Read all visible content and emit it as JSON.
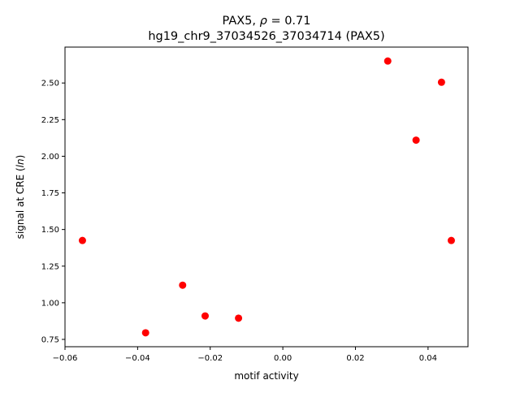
{
  "chart_data": {
    "type": "scatter",
    "title_line1_prefix": "PAX5, ",
    "title_rho_symbol": "ρ",
    "title_rho_value": " = 0.71",
    "title_line2": "hg19_chr9_37034526_37034714 (PAX5)",
    "xlabel": "motif activity",
    "ylabel_prefix": "signal at CRE (",
    "ylabel_italic": "ln",
    "ylabel_suffix": ")",
    "xlim": [
      -0.06,
      0.051
    ],
    "ylim": [
      0.7,
      2.745
    ],
    "xticks": [
      -0.06,
      -0.04,
      -0.02,
      0.0,
      0.02,
      0.04
    ],
    "xtick_labels": [
      "−0.06",
      "−0.04",
      "−0.02",
      "0.00",
      "0.02",
      "0.04"
    ],
    "yticks": [
      0.75,
      1.0,
      1.25,
      1.5,
      1.75,
      2.0,
      2.25,
      2.5
    ],
    "ytick_labels": [
      "0.75",
      "1.00",
      "1.25",
      "1.50",
      "1.75",
      "2.00",
      "2.25",
      "2.50"
    ],
    "grid": false,
    "marker_color": "#ff0000",
    "points": [
      {
        "x": -0.0552,
        "y": 1.425
      },
      {
        "x": -0.0378,
        "y": 0.795
      },
      {
        "x": -0.0276,
        "y": 1.12
      },
      {
        "x": -0.0214,
        "y": 0.91
      },
      {
        "x": -0.0122,
        "y": 0.895
      },
      {
        "x": 0.0289,
        "y": 2.65
      },
      {
        "x": 0.0367,
        "y": 2.11
      },
      {
        "x": 0.0437,
        "y": 2.505
      },
      {
        "x": 0.0464,
        "y": 1.425
      }
    ]
  }
}
